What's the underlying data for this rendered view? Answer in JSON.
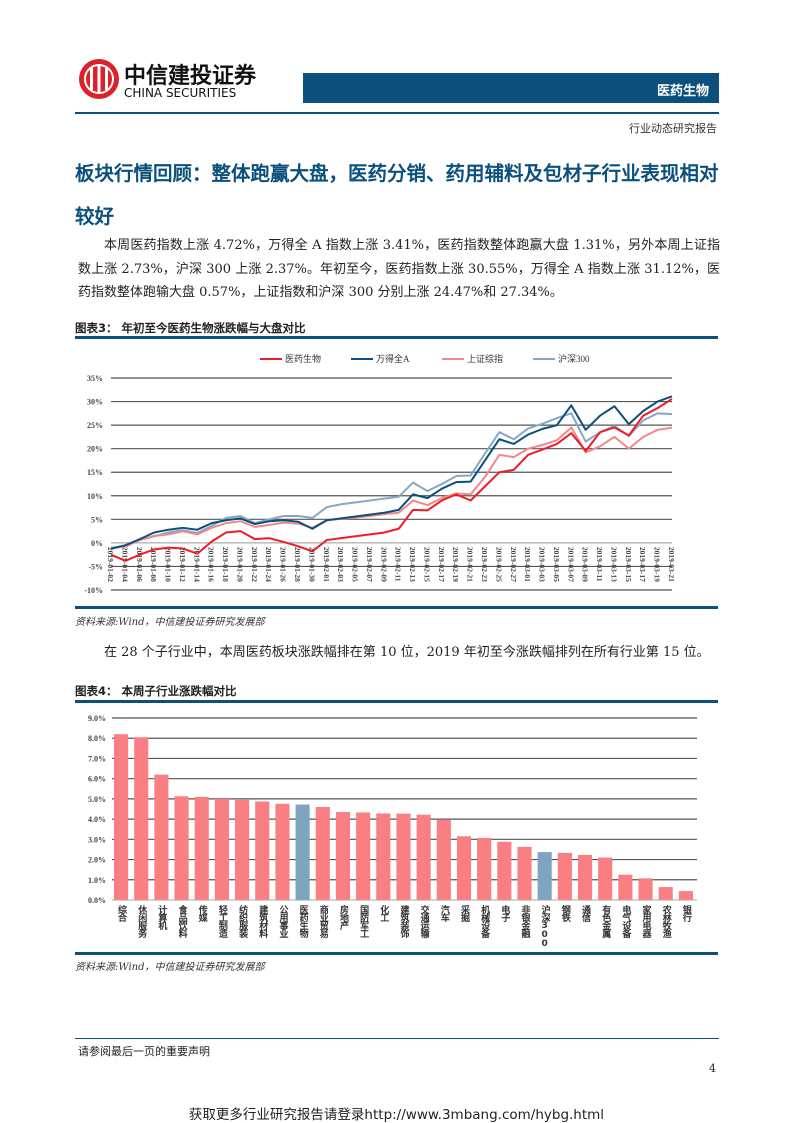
{
  "header": {
    "logo_cn": "中信建投证券",
    "logo_en": "CHINA SECURITIES",
    "sector": "医药生物",
    "report_type": "行业动态研究报告",
    "brand_color": "#0b4f7d",
    "logo_color": "#d9222a"
  },
  "title": "板块行情回顾：整体跑赢大盘，医药分销、药用辅料及包材子行业表现相对较好",
  "paragraph1": "本周医药指数上涨 4.72%，万得全 A 指数上涨 3.41%，医药指数整体跑赢大盘 1.31%，另外本周上证指数上涨 2.73%，沪深 300 上涨 2.37%。年初至今，医药指数上涨 30.55%，万得全 A 指数上涨 31.12%，医药指数整体跑输大盘 0.57%，上证指数和沪深 300 分别上涨 24.47%和 27.34%。",
  "figure3": {
    "caption": "图表3：  年初至今医药生物涨跌幅与大盘对比",
    "source": "资料来源:Wind，中信建投证券研究发展部"
  },
  "paragraph2": "在 28 个子行业中，本周医药板块涨跌幅排在第 10 位，2019 年初至今涨跌幅排列在所有行业第 15 位。",
  "figure4": {
    "caption": "图表4：  本周子行业涨跌幅对比",
    "source": "资料来源:Wind，中信建投证券研究发展部"
  },
  "footer": {
    "disclaimer": "请参阅最后一页的重要声明",
    "page": "4",
    "promo": "获取更多行业研究报告请登录http://www.3mbang.com/hybg.html"
  },
  "chart_data": [
    {
      "type": "line",
      "ylim": [
        -10,
        35
      ],
      "yticks": [
        "-10%",
        "-5%",
        "0%",
        "5%",
        "10%",
        "15%",
        "20%",
        "25%",
        "30%",
        "35%"
      ],
      "grid": true,
      "legend": "top",
      "x": [
        "2019-01-02",
        "2019-01-04",
        "2019-01-06",
        "2019-01-08",
        "2019-01-10",
        "2019-01-12",
        "2019-01-14",
        "2019-01-16",
        "2019-01-18",
        "2019-01-20",
        "2019-01-22",
        "2019-01-24",
        "2019-01-26",
        "2019-01-28",
        "2019-01-30",
        "2019-02-01",
        "2019-02-03",
        "2019-02-05",
        "2019-02-07",
        "2019-02-09",
        "2019-02-11",
        "2019-02-13",
        "2019-02-15",
        "2019-02-17",
        "2019-02-19",
        "2019-02-21",
        "2019-02-23",
        "2019-02-25",
        "2019-02-27",
        "2019-03-01",
        "2019-03-03",
        "2019-03-05",
        "2019-03-07",
        "2019-03-09",
        "2019-03-11",
        "2019-03-13",
        "2019-03-15",
        "2019-03-17",
        "2019-03-19",
        "2019-03-21"
      ],
      "series": [
        {
          "name": "医药生物",
          "color": "#ee1c25",
          "values": [
            -2.5,
            -3.8,
            -2.5,
            -1.4,
            -1.0,
            -1.2,
            -2.3,
            0.3,
            2.2,
            2.5,
            0.8,
            1.0,
            0.2,
            -0.7,
            -1.8,
            0.6,
            1.0,
            1.4,
            1.8,
            2.2,
            3.0,
            7.0,
            6.9,
            9.0,
            10.3,
            9.0,
            12.0,
            15.0,
            15.5,
            18.7,
            19.8,
            21.0,
            23.3,
            19.5,
            23.5,
            24.5,
            22.8,
            27.0,
            28.6,
            30.55
          ]
        },
        {
          "name": "万得全A",
          "color": "#0b4f7d",
          "values": [
            -1.2,
            -0.5,
            0.8,
            2.2,
            2.8,
            3.2,
            2.8,
            4.2,
            4.8,
            5.2,
            4.0,
            4.6,
            4.8,
            4.5,
            3.0,
            4.8,
            5.2,
            5.6,
            6.0,
            6.4,
            7.0,
            10.3,
            9.5,
            11.5,
            12.9,
            13.0,
            17.5,
            22.0,
            21.0,
            23.0,
            24.2,
            25.0,
            29.2,
            24.0,
            27.0,
            29.0,
            25.2,
            28.0,
            30.0,
            31.12
          ]
        },
        {
          "name": "上证综指",
          "color": "#f4868a",
          "values": [
            -1.0,
            -0.8,
            0.6,
            1.5,
            1.8,
            2.5,
            1.8,
            3.2,
            4.2,
            4.6,
            3.4,
            3.8,
            4.3,
            4.1,
            3.2,
            4.8,
            5.1,
            5.4,
            5.7,
            6.1,
            6.4,
            9.0,
            8.0,
            9.5,
            10.5,
            10.3,
            14.0,
            18.7,
            18.2,
            20.0,
            20.8,
            21.8,
            24.5,
            19.2,
            20.5,
            22.5,
            20.0,
            22.5,
            24.0,
            24.47
          ]
        },
        {
          "name": "沪深300",
          "color": "#86a8c4",
          "values": [
            -1.3,
            -0.6,
            0.6,
            1.4,
            2.2,
            2.7,
            2.1,
            3.6,
            5.3,
            5.7,
            4.2,
            5.0,
            5.7,
            5.7,
            5.3,
            7.6,
            8.2,
            8.6,
            9.0,
            9.4,
            9.8,
            12.8,
            11.0,
            12.5,
            14.2,
            14.3,
            19.0,
            23.5,
            22.0,
            24.3,
            25.3,
            26.5,
            27.5,
            21.5,
            23.5,
            24.8,
            22.7,
            26.0,
            27.5,
            27.34
          ]
        }
      ]
    },
    {
      "type": "bar",
      "ylim": [
        0,
        9
      ],
      "yticks": [
        "0.0%",
        "1.0%",
        "2.0%",
        "3.0%",
        "4.0%",
        "5.0%",
        "6.0%",
        "7.0%",
        "8.0%",
        "9.0%"
      ],
      "grid": true,
      "bar_color": "#f97f82",
      "highlight_color": "#7fa4bf",
      "highlight": [
        "医药生物",
        "沪深300"
      ],
      "categories": [
        "综合",
        "休闲服务",
        "计算机",
        "食品饮料",
        "传媒",
        "轻工制造",
        "纺织服装",
        "建筑材料",
        "公用事业",
        "医药生物",
        "商业贸易",
        "房地产",
        "国防军工",
        "化工",
        "建筑装饰",
        "交通运输",
        "汽车",
        "采掘",
        "机械设备",
        "电子",
        "非银金融",
        "沪深300",
        "钢铁",
        "通信",
        "有色金属",
        "电气设备",
        "家用电器",
        "农林牧渔",
        "银行"
      ],
      "values": [
        8.2,
        8.05,
        6.2,
        5.13,
        5.1,
        5.0,
        4.95,
        4.87,
        4.76,
        4.72,
        4.6,
        4.35,
        4.33,
        4.28,
        4.27,
        4.22,
        3.98,
        3.15,
        3.07,
        2.88,
        2.63,
        2.37,
        2.33,
        2.23,
        2.1,
        1.25,
        1.07,
        0.64,
        0.44
      ]
    }
  ]
}
